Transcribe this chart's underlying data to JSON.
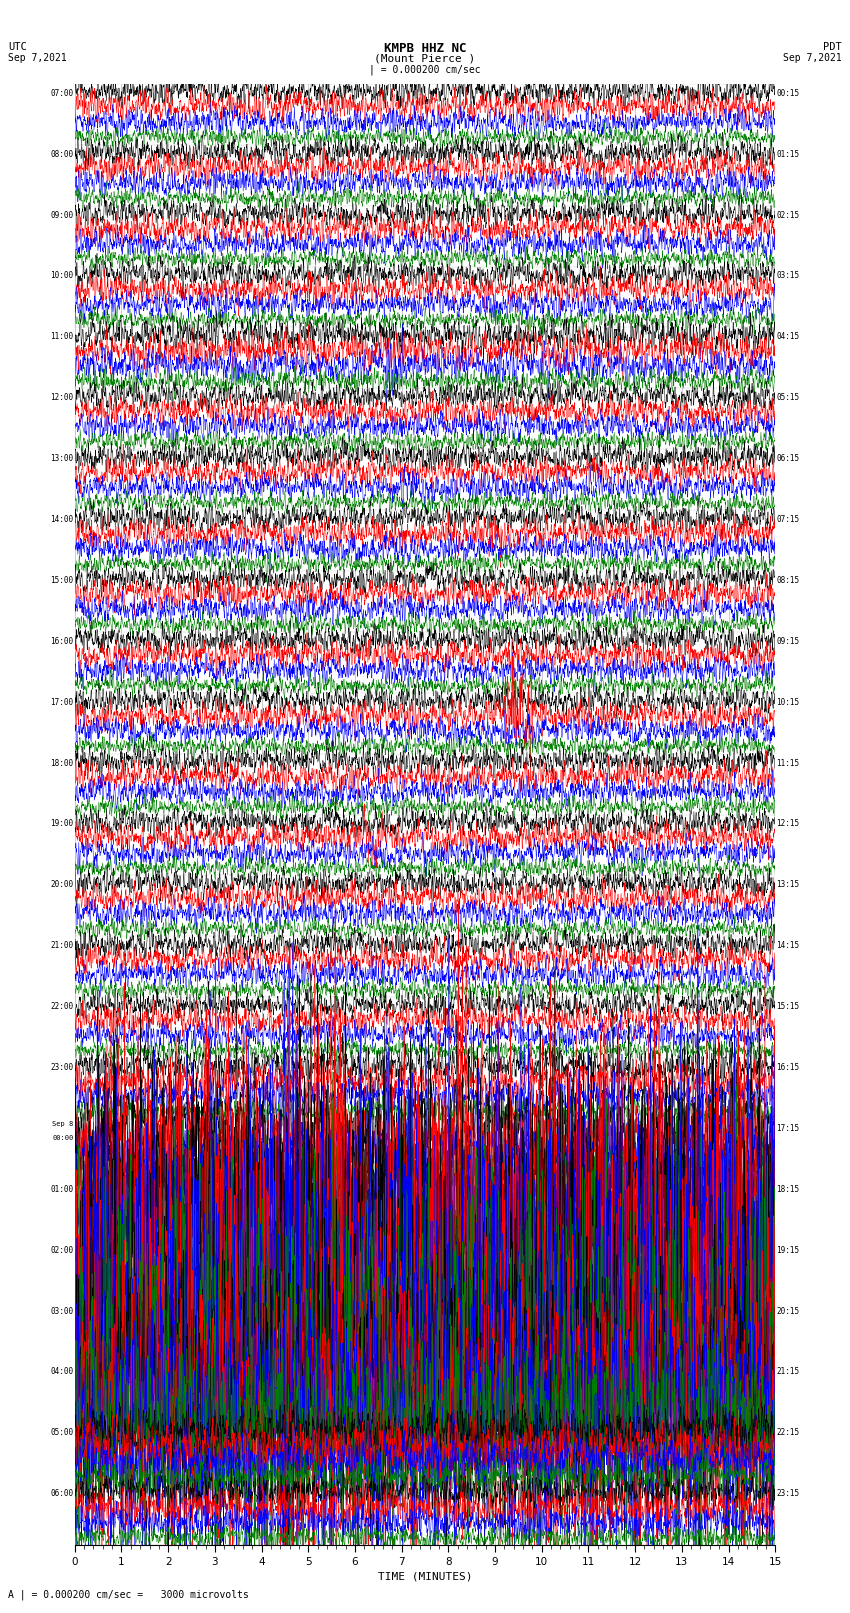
{
  "title_line1": "KMPB HHZ NC",
  "title_line2": "(Mount Pierce )",
  "scale_text": "| = 0.000200 cm/sec",
  "bottom_text": "A | = 0.000200 cm/sec =   3000 microvolts",
  "xlabel": "TIME (MINUTES)",
  "utc_label": "UTC",
  "pdt_label": "PDT",
  "date_left": "Sep 7,2021",
  "date_right": "Sep 7,2021",
  "background_color": "#ffffff",
  "trace_colors": [
    "#000000",
    "#ff0000",
    "#0000ff",
    "#008000"
  ],
  "left_times": [
    "07:00",
    "08:00",
    "09:00",
    "10:00",
    "11:00",
    "12:00",
    "13:00",
    "14:00",
    "15:00",
    "16:00",
    "17:00",
    "18:00",
    "19:00",
    "20:00",
    "21:00",
    "22:00",
    "23:00",
    "Sep 8\n00:00",
    "01:00",
    "02:00",
    "03:00",
    "04:00",
    "05:00",
    "06:00"
  ],
  "right_times": [
    "00:15",
    "01:15",
    "02:15",
    "03:15",
    "04:15",
    "05:15",
    "06:15",
    "07:15",
    "08:15",
    "09:15",
    "10:15",
    "11:15",
    "12:15",
    "13:15",
    "14:15",
    "15:15",
    "16:15",
    "17:15",
    "18:15",
    "19:15",
    "20:15",
    "21:15",
    "22:15",
    "23:15"
  ],
  "num_rows": 24,
  "xmin": 0,
  "xmax": 15,
  "fig_width": 8.5,
  "fig_height": 16.13,
  "dpi": 100,
  "row_amplitudes": [
    0.1,
    0.1,
    0.1,
    0.1,
    0.12,
    0.1,
    0.1,
    0.1,
    0.1,
    0.1,
    0.1,
    0.1,
    0.1,
    0.1,
    0.1,
    0.1,
    0.12,
    0.18,
    0.22,
    0.3,
    0.3,
    0.25,
    0.18,
    0.12
  ]
}
